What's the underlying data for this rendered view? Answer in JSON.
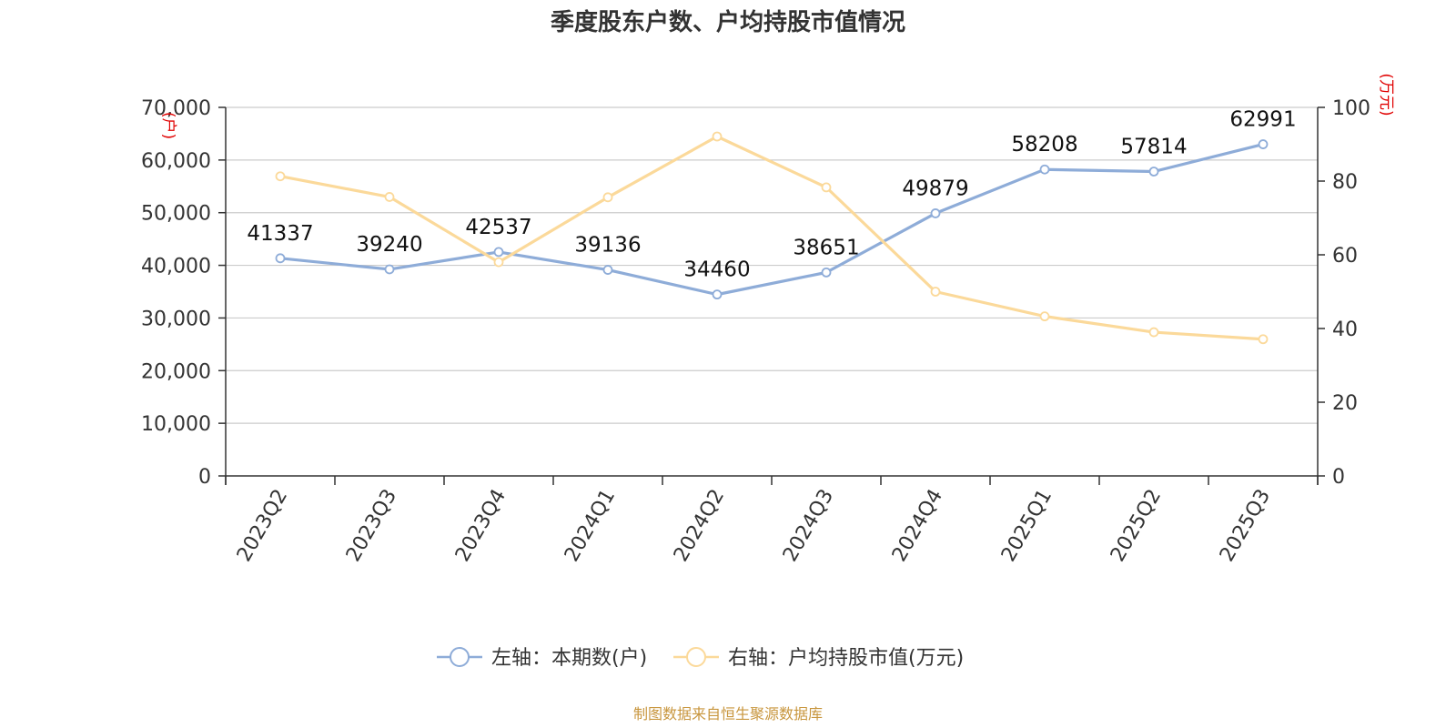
{
  "chart_data": {
    "type": "line",
    "title": "季度股东户数、户均持股市值情况",
    "categories": [
      "2023Q2",
      "2023Q3",
      "2023Q4",
      "2024Q1",
      "2024Q2",
      "2024Q3",
      "2024Q4",
      "2025Q1",
      "2025Q2",
      "2025Q3"
    ],
    "left_axis": {
      "unit": "(户)",
      "ylim": [
        0,
        70000
      ],
      "ticks": [
        0,
        10000,
        20000,
        30000,
        40000,
        50000,
        60000,
        70000
      ],
      "tick_labels": [
        "0",
        "10,000",
        "20,000",
        "30,000",
        "40,000",
        "50,000",
        "60,000",
        "70,000"
      ]
    },
    "right_axis": {
      "unit": "(万元)",
      "ylim": [
        0,
        100
      ],
      "ticks": [
        0,
        20,
        40,
        60,
        80,
        100
      ],
      "tick_labels": [
        "0",
        "20",
        "40",
        "60",
        "80",
        "100"
      ]
    },
    "series": [
      {
        "name": "左轴：本期数(户)",
        "axis": "left",
        "color": "#8eacd8",
        "values": [
          41337,
          39240,
          42537,
          39136,
          34460,
          38651,
          49879,
          58208,
          57814,
          62991
        ],
        "data_labels": [
          "41337",
          "39240",
          "42537",
          "39136",
          "34460",
          "38651",
          "49879",
          "58208",
          "57814",
          "62991"
        ]
      },
      {
        "name": "右轴：户均持股市值(万元)",
        "axis": "right",
        "color": "#fbd99a",
        "values": [
          81.3,
          75.7,
          58.0,
          75.6,
          92.1,
          78.3,
          50.0,
          43.3,
          39.0,
          37.1
        ]
      }
    ],
    "grid": true,
    "legend_position": "bottom-center"
  },
  "source": "制图数据来自恒生聚源数据库"
}
